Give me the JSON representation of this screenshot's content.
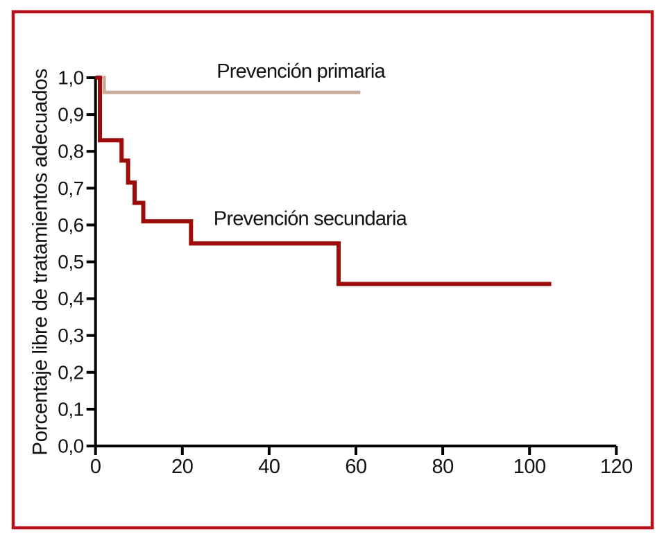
{
  "figure": {
    "border_color": "#b5121c",
    "background": "#ffffff",
    "axis_color": "#000000",
    "text_color": "#121212"
  },
  "chart_data": {
    "type": "line",
    "subtype": "kaplan-meier-step",
    "title": "",
    "xlabel": "",
    "ylabel": "Porcentaje libre de tratamientos adecuados",
    "xlim": [
      0,
      120
    ],
    "ylim": [
      0.0,
      1.0
    ],
    "grid": false,
    "legend_position": "inline-annotations",
    "x_ticks": [
      0,
      20,
      40,
      60,
      80,
      100,
      120
    ],
    "x_tick_labels": [
      "0",
      "20",
      "40",
      "60",
      "80",
      "100",
      "120"
    ],
    "y_ticks": [
      0.0,
      0.1,
      0.2,
      0.3,
      0.4,
      0.5,
      0.6,
      0.7,
      0.8,
      0.9,
      1.0
    ],
    "y_tick_labels": [
      "0,0",
      "0,1",
      "0,2",
      "0,3",
      "0,4",
      "0,5",
      "0,6",
      "0,7",
      "0,8",
      "0,9",
      "1,0"
    ],
    "series": [
      {
        "name": "Prevención primaria",
        "color": "#c8ac9b",
        "step": true,
        "points": [
          [
            0,
            1.0
          ],
          [
            2,
            1.0
          ],
          [
            2,
            0.96
          ],
          [
            61,
            0.96
          ]
        ]
      },
      {
        "name": "Prevención secundaria",
        "color": "#9e0b0b",
        "step": true,
        "points": [
          [
            0,
            1.0
          ],
          [
            1,
            1.0
          ],
          [
            1,
            0.83
          ],
          [
            6,
            0.83
          ],
          [
            6,
            0.775
          ],
          [
            7.5,
            0.775
          ],
          [
            7.5,
            0.715
          ],
          [
            9,
            0.715
          ],
          [
            9,
            0.66
          ],
          [
            11,
            0.66
          ],
          [
            11,
            0.61
          ],
          [
            22,
            0.61
          ],
          [
            22,
            0.55
          ],
          [
            56,
            0.55
          ],
          [
            56,
            0.44
          ],
          [
            105,
            0.44
          ]
        ]
      }
    ],
    "annotations": [
      {
        "text": "Prevención primaria",
        "x": 27.9,
        "y": 1.017
      },
      {
        "text": "Prevención secundaria",
        "x": 27.2,
        "y": 0.617
      }
    ]
  }
}
